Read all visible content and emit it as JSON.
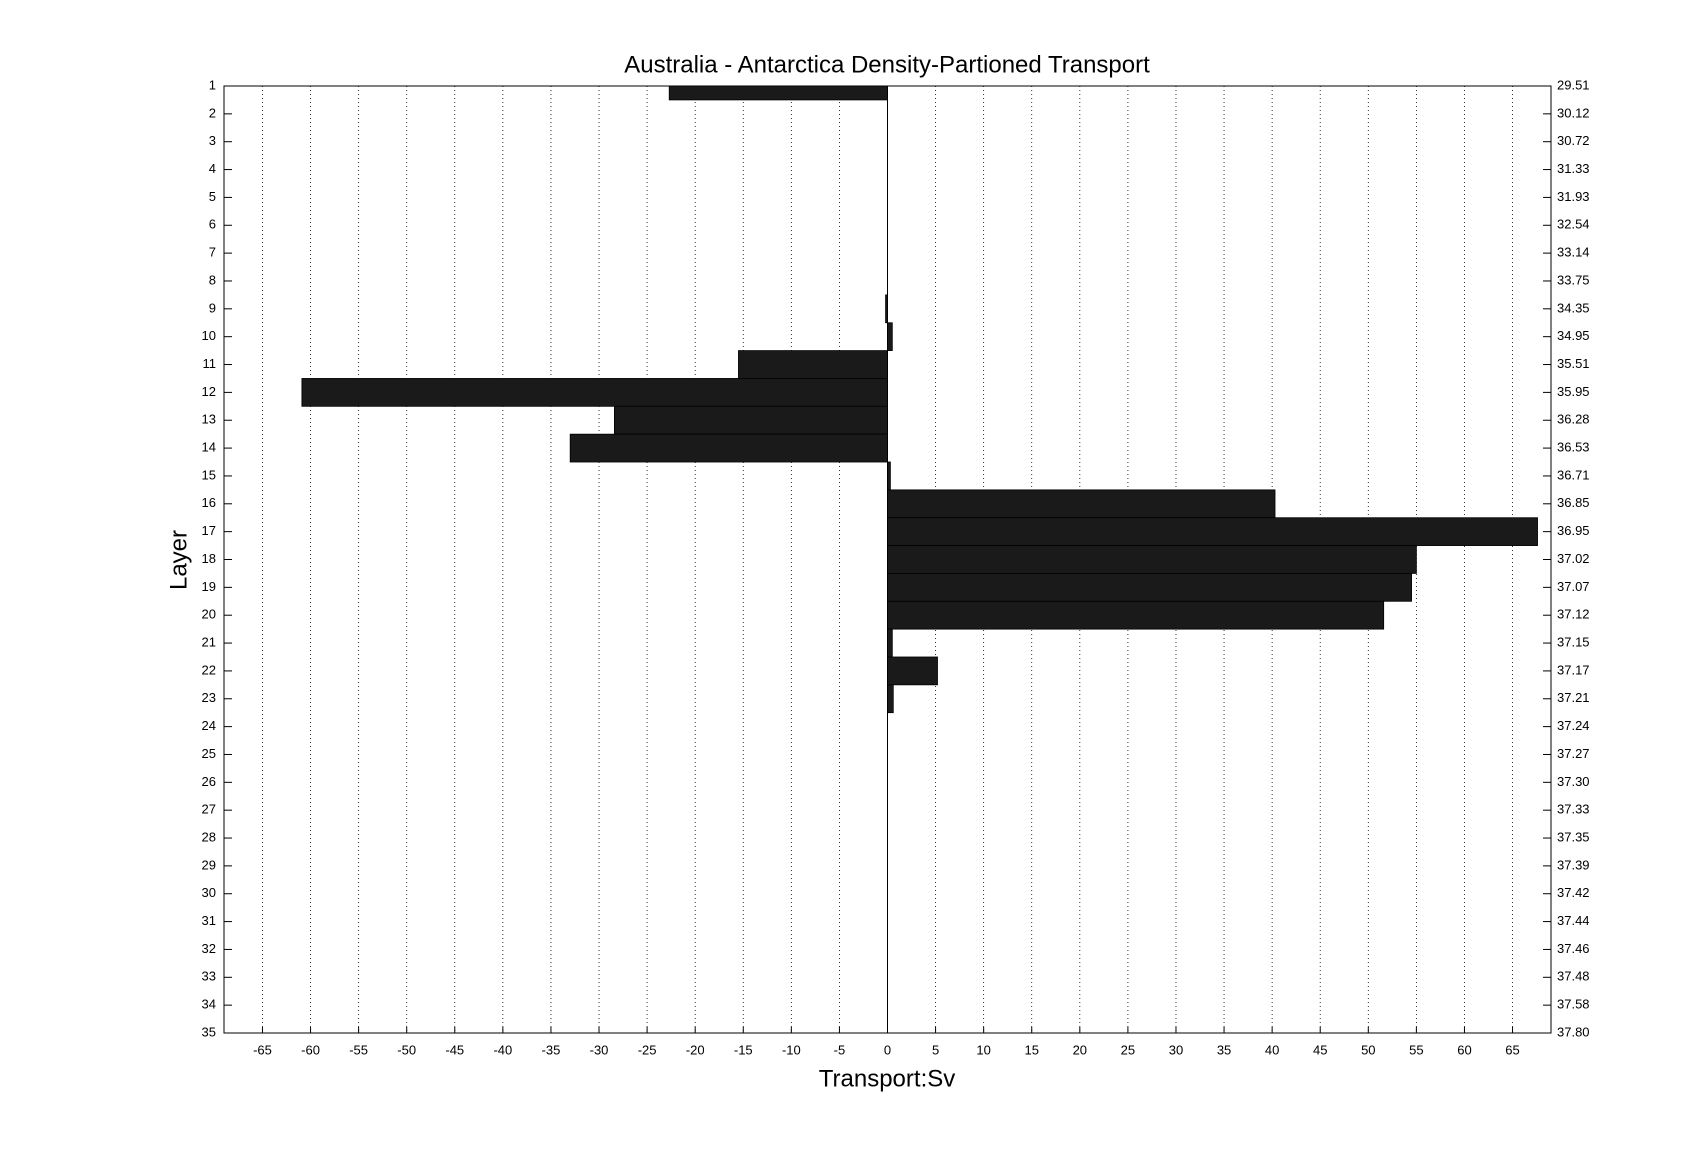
{
  "chart_data": {
    "type": "hbar",
    "title": "Australia - Antarctica Density-Partioned Transport",
    "xlabel": "Transport:Sv",
    "ylabel": "Layer",
    "color": "#1a1a1a",
    "grid": true,
    "y": [
      1,
      2,
      3,
      4,
      5,
      6,
      7,
      8,
      9,
      10,
      11,
      12,
      13,
      14,
      15,
      16,
      17,
      18,
      19,
      20,
      21,
      22,
      23,
      24,
      25,
      26,
      27,
      28,
      29,
      30,
      31,
      32,
      33,
      34,
      35
    ],
    "values": [
      -22.7,
      0,
      0,
      0,
      0,
      0,
      0,
      0,
      -0.2,
      0.5,
      -15.5,
      -60.9,
      -28.4,
      -33.0,
      0.3,
      40.3,
      67.6,
      55.0,
      54.5,
      51.6,
      0.5,
      5.2,
      0.6,
      0,
      0,
      0,
      0,
      0,
      0,
      0,
      0,
      0,
      0,
      0,
      0
    ],
    "xlim": [
      -69,
      69
    ],
    "xticks": [
      -65,
      -60,
      -55,
      -50,
      -45,
      -40,
      -35,
      -30,
      -25,
      -20,
      -15,
      -10,
      -5,
      0,
      5,
      10,
      15,
      20,
      25,
      30,
      35,
      40,
      45,
      50,
      55,
      60,
      65
    ],
    "ylim": [
      1,
      35
    ],
    "yticks": [
      1,
      2,
      3,
      4,
      5,
      6,
      7,
      8,
      9,
      10,
      11,
      12,
      13,
      14,
      15,
      16,
      17,
      18,
      19,
      20,
      21,
      22,
      23,
      24,
      25,
      26,
      27,
      28,
      29,
      30,
      31,
      32,
      33,
      34,
      35
    ],
    "y2ticks": [
      {
        "value": 1,
        "label": "29.51"
      },
      {
        "value": 2,
        "label": "30.12"
      },
      {
        "value": 3,
        "label": "30.72"
      },
      {
        "value": 4,
        "label": "31.33"
      },
      {
        "value": 5,
        "label": "31.93"
      },
      {
        "value": 6,
        "label": "32.54"
      },
      {
        "value": 7,
        "label": "33.14"
      },
      {
        "value": 8,
        "label": "33.75"
      },
      {
        "value": 9,
        "label": "34.35"
      },
      {
        "value": 10,
        "label": "34.95"
      },
      {
        "value": 11,
        "label": "35.51"
      },
      {
        "value": 12,
        "label": "35.95"
      },
      {
        "value": 13,
        "label": "36.28"
      },
      {
        "value": 14,
        "label": "36.53"
      },
      {
        "value": 15,
        "label": "36.71"
      },
      {
        "value": 16,
        "label": "36.85"
      },
      {
        "value": 17,
        "label": "36.95"
      },
      {
        "value": 18,
        "label": "37.02"
      },
      {
        "value": 19,
        "label": "37.07"
      },
      {
        "value": 20,
        "label": "37.12"
      },
      {
        "value": 21,
        "label": "37.15"
      },
      {
        "value": 22,
        "label": "37.17"
      },
      {
        "value": 23,
        "label": "37.21"
      },
      {
        "value": 24,
        "label": "37.24"
      },
      {
        "value": 25,
        "label": "37.27"
      },
      {
        "value": 26,
        "label": "37.30"
      },
      {
        "value": 27,
        "label": "37.33"
      },
      {
        "value": 28,
        "label": "37.35"
      },
      {
        "value": 29,
        "label": "37.39"
      },
      {
        "value": 30,
        "label": "37.42"
      },
      {
        "value": 31,
        "label": "37.44"
      },
      {
        "value": 32,
        "label": "37.46"
      },
      {
        "value": 33,
        "label": "37.48"
      },
      {
        "value": 34,
        "label": "37.58"
      },
      {
        "value": 35,
        "label": "37.80"
      }
    ]
  }
}
